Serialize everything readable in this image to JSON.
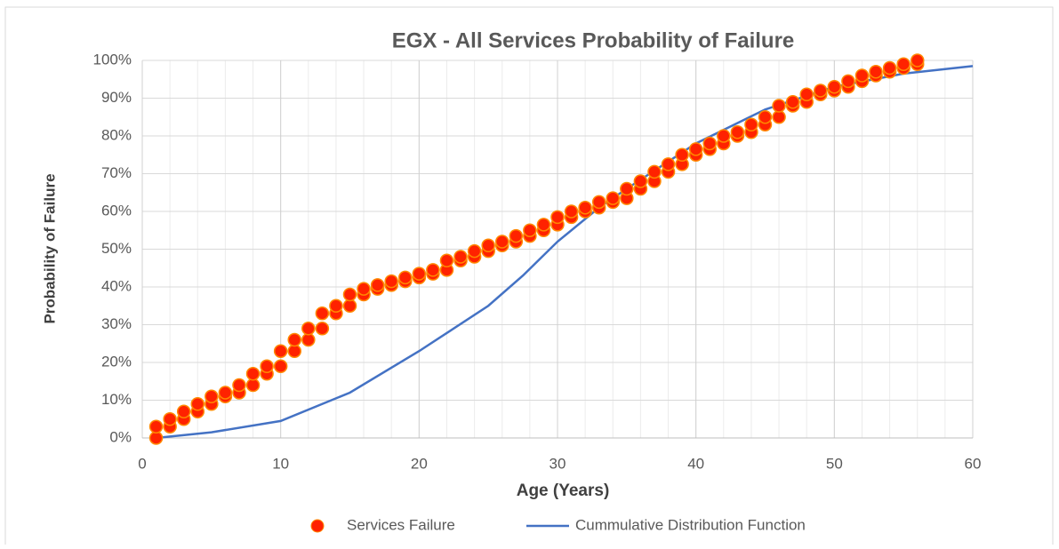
{
  "chart_data": {
    "type": "scatter",
    "title": "EGX - All Services Probability of Failure",
    "x_label": "Age (Years)",
    "y_label": "Probability of Failure",
    "xlim": [
      0,
      60
    ],
    "xticks": [
      0,
      10,
      20,
      30,
      40,
      50,
      60
    ],
    "ylim": [
      0,
      100
    ],
    "yticks": [
      {
        "value": 0,
        "label": "0%"
      },
      {
        "value": 10,
        "label": "10%"
      },
      {
        "value": 20,
        "label": "20%"
      },
      {
        "value": 30,
        "label": "30%"
      },
      {
        "value": 40,
        "label": "40%"
      },
      {
        "value": 50,
        "label": "50%"
      },
      {
        "value": 60,
        "label": "60%"
      },
      {
        "value": 70,
        "label": "70%"
      },
      {
        "value": 80,
        "label": "80%"
      },
      {
        "value": 90,
        "label": "90%"
      },
      {
        "value": 100,
        "label": "100%"
      }
    ],
    "grid": true,
    "legend": "bottom",
    "series": [
      {
        "name": "Services Failure",
        "type": "scatter",
        "color": "#ff2200",
        "x": [
          1,
          1,
          2,
          2,
          3,
          3,
          4,
          4,
          5,
          5,
          6,
          6,
          7,
          7,
          8,
          8,
          9,
          9,
          10,
          10,
          11,
          11,
          12,
          12,
          13,
          13,
          14,
          14,
          15,
          15,
          16,
          16,
          17,
          17,
          18,
          18,
          19,
          19,
          20,
          20,
          21,
          21,
          22,
          22,
          23,
          23,
          24,
          24,
          25,
          25,
          26,
          26,
          27,
          27,
          28,
          28,
          29,
          29,
          30,
          30,
          31,
          31,
          32,
          32,
          33,
          33,
          34,
          34,
          35,
          35,
          36,
          36,
          37,
          37,
          38,
          38,
          39,
          39,
          40,
          40,
          41,
          41,
          42,
          42,
          43,
          43,
          44,
          44,
          45,
          45,
          46,
          46,
          47,
          47,
          48,
          48,
          49,
          49,
          50,
          50,
          51,
          51,
          52,
          52,
          53,
          53,
          54,
          54,
          55,
          55,
          56,
          56
        ],
        "values": [
          0,
          3,
          3,
          5,
          5,
          7,
          7,
          9,
          9,
          11,
          11,
          12,
          12,
          14,
          14,
          17,
          17,
          19,
          19,
          23,
          23,
          26,
          26,
          29,
          29,
          33,
          33,
          35,
          35,
          38,
          38,
          39.5,
          39.5,
          40.5,
          40.5,
          41.5,
          41.5,
          42.5,
          42.5,
          43.5,
          43.5,
          44.5,
          44.5,
          47,
          47,
          48,
          48,
          49.5,
          49.5,
          51,
          51,
          52,
          52,
          53.5,
          53.5,
          55,
          55,
          56.5,
          56.5,
          58.5,
          58.5,
          60,
          60,
          61,
          61,
          62.5,
          62.5,
          63.5,
          63.5,
          66,
          66,
          68,
          68,
          70.5,
          70.5,
          72.5,
          72.5,
          75,
          75,
          76.5,
          76.5,
          78,
          78,
          80,
          80,
          81,
          81,
          83,
          83,
          85,
          85,
          88,
          88,
          89,
          89,
          91,
          91,
          92,
          92,
          93,
          93,
          94.5,
          94.5,
          96,
          96,
          97,
          97,
          98,
          98,
          99,
          99,
          100
        ]
      },
      {
        "name": "Cummulative Distribution Function",
        "type": "line",
        "color": "#4472c4",
        "x": [
          1,
          5,
          10,
          15,
          20,
          25,
          27.5,
          30,
          33,
          35,
          40,
          45,
          50,
          55,
          60
        ],
        "values": [
          0,
          1.5,
          4.5,
          12,
          23,
          35,
          43,
          52,
          61,
          66,
          78,
          87,
          93,
          96.5,
          98.5
        ]
      }
    ]
  }
}
